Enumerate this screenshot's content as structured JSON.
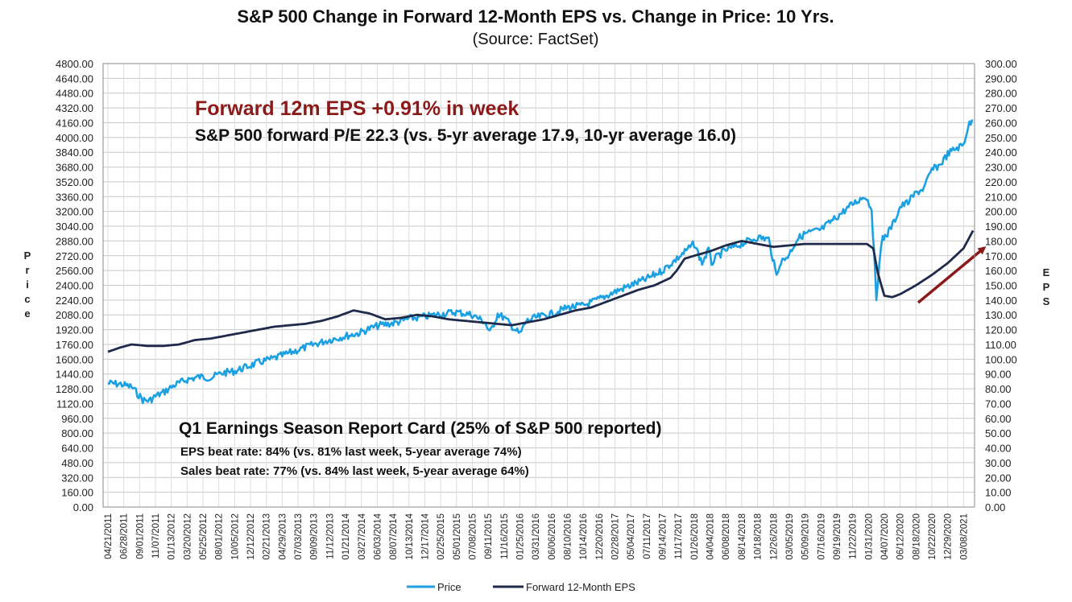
{
  "chart_data": {
    "type": "line",
    "title": "S&P 500 Change in Forward 12-Month EPS vs. Change in Price: 10 Yrs.",
    "subtitle": "(Source: FactSet)",
    "ylabel": "Price",
    "y2label": "EPS",
    "ylim": [
      0,
      4800
    ],
    "y2lim": [
      0,
      300
    ],
    "yticks": [
      "0.00",
      "160.00",
      "320.00",
      "480.00",
      "640.00",
      "800.00",
      "960.00",
      "1120.00",
      "1280.00",
      "1440.00",
      "1600.00",
      "1760.00",
      "1920.00",
      "2080.00",
      "2240.00",
      "2400.00",
      "2560.00",
      "2720.00",
      "2880.00",
      "3040.00",
      "3200.00",
      "3360.00",
      "3520.00",
      "3680.00",
      "3840.00",
      "4000.00",
      "4160.00",
      "4320.00",
      "4480.00",
      "4640.00",
      "4800.00"
    ],
    "y2ticks": [
      "0.00",
      "10.00",
      "20.00",
      "30.00",
      "40.00",
      "50.00",
      "60.00",
      "70.00",
      "80.00",
      "90.00",
      "100.00",
      "110.00",
      "120.00",
      "130.00",
      "140.00",
      "150.00",
      "160.00",
      "170.00",
      "180.00",
      "190.00",
      "200.00",
      "210.00",
      "220.00",
      "230.00",
      "240.00",
      "250.00",
      "260.00",
      "270.00",
      "280.00",
      "290.00",
      "300.00"
    ],
    "xticks": [
      "04/21/2011",
      "06/28/2011",
      "09/01/2011",
      "11/07/2011",
      "01/13/2012",
      "03/20/2012",
      "05/25/2012",
      "08/01/2012",
      "10/05/2012",
      "12/12/2012",
      "02/21/2013",
      "04/29/2013",
      "07/03/2013",
      "09/09/2013",
      "11/12/2013",
      "01/21/2014",
      "03/27/2014",
      "06/03/2014",
      "08/07/2014",
      "10/13/2014",
      "12/17/2014",
      "02/25/2015",
      "05/01/2015",
      "07/08/2015",
      "09/11/2015",
      "11/16/2015",
      "01/25/2016",
      "03/31/2016",
      "06/06/2016",
      "08/10/2016",
      "10/14/2016",
      "12/20/2016",
      "02/28/2017",
      "05/04/2017",
      "07/11/2017",
      "09/14/2017",
      "11/17/2017",
      "01/26/2018",
      "04/04/2018",
      "06/08/2018",
      "08/14/2018",
      "10/18/2018",
      "12/26/2018",
      "03/05/2019",
      "05/09/2019",
      "07/16/2019",
      "09/19/2019",
      "11/22/2019",
      "01/31/2020",
      "04/07/2020",
      "06/12/2020",
      "08/18/2020",
      "10/22/2020",
      "12/29/2020",
      "03/08/2021"
    ],
    "series": [
      {
        "name": "Price",
        "axis": "left",
        "color": "#1ba1e2",
        "x": [
          0,
          0.8,
          1.5,
          2.2,
          2.6,
          3.0,
          3.5,
          4.2,
          5.0,
          5.8,
          6.5,
          7.2,
          8.0,
          8.8,
          9.6,
          10.3,
          11.0,
          12.0,
          13.0,
          14.0,
          15.0,
          15.8,
          16.5,
          17.2,
          18.0,
          18.5,
          19.0,
          20.0,
          21.0,
          22.0,
          23.0,
          23.8,
          24.1,
          24.6,
          25.0,
          25.6,
          26.0,
          26.4,
          27.0,
          28.0,
          29.0,
          30.0,
          31.0,
          32.0,
          33.0,
          34.0,
          35.0,
          36.0,
          37.0,
          37.5,
          37.9,
          38.1,
          38.5,
          39.0,
          40.0,
          41.0,
          41.7,
          42.2,
          42.4,
          42.8,
          43.0,
          43.5,
          44.0,
          45.0,
          46.0,
          47.0,
          47.8,
          48.2,
          48.5,
          48.7,
          48.9,
          49.2,
          49.6,
          50.0,
          50.5,
          51.0,
          51.5,
          52.0,
          52.5,
          53.0,
          53.5,
          54.0,
          54.3,
          54.6
        ],
        "values": [
          1340,
          1330,
          1300,
          1160,
          1150,
          1200,
          1240,
          1320,
          1380,
          1410,
          1400,
          1450,
          1470,
          1520,
          1570,
          1600,
          1640,
          1700,
          1760,
          1810,
          1850,
          1880,
          1930,
          1970,
          1990,
          2010,
          2040,
          2060,
          2090,
          2110,
          2080,
          2000,
          1880,
          2090,
          2050,
          1940,
          1870,
          2010,
          2050,
          2090,
          2160,
          2180,
          2250,
          2330,
          2400,
          2470,
          2560,
          2700,
          2850,
          2640,
          2780,
          2640,
          2720,
          2780,
          2850,
          2920,
          2900,
          2500,
          2640,
          2700,
          2740,
          2900,
          2960,
          3000,
          3140,
          3280,
          3370,
          3230,
          2250,
          2700,
          2900,
          2960,
          3080,
          3250,
          3300,
          3400,
          3450,
          3650,
          3700,
          3820,
          3880,
          3920,
          4130,
          4180
        ]
      },
      {
        "name": "Forward 12-Month EPS",
        "axis": "right",
        "color": "#1f2a4a",
        "x": [
          0,
          0.8,
          1.5,
          2.5,
          3.5,
          4.5,
          5.5,
          6.5,
          7.5,
          8.5,
          9.5,
          10.5,
          11.5,
          12.5,
          13.5,
          14.5,
          15.5,
          16.5,
          17.5,
          18.5,
          19.5,
          20.5,
          21.5,
          22.5,
          23.5,
          24.5,
          25.5,
          26.5,
          27.5,
          28.5,
          29.5,
          30.5,
          31.5,
          32.5,
          33.5,
          34.5,
          35.5,
          35.9,
          36.4,
          37.0,
          38.0,
          39.0,
          40.0,
          41.0,
          42.0,
          43.0,
          44.0,
          45.0,
          46.0,
          47.0,
          47.9,
          48.3,
          48.6,
          49.0,
          49.5,
          50.0,
          50.5,
          51.0,
          52.0,
          53.0,
          54.0,
          54.6
        ],
        "values": [
          105,
          108,
          110,
          109,
          109,
          110,
          113,
          114,
          116,
          118,
          120,
          122,
          123,
          124,
          126,
          129,
          133,
          131,
          127,
          128,
          130,
          129,
          127,
          126,
          125,
          124,
          123,
          125,
          127,
          130,
          133,
          135,
          139,
          143,
          147,
          150,
          155,
          160,
          168,
          170,
          173,
          177,
          180,
          178,
          176,
          177,
          178,
          178,
          178,
          178,
          178,
          175,
          158,
          143,
          142,
          144,
          147,
          150,
          157,
          165,
          175,
          187
        ]
      }
    ],
    "annotations": {
      "eps_week": "Forward 12m EPS +0.91% in week",
      "pe_line": "S&P 500 forward P/E 22.3 (vs. 5-yr average 17.9, 10-yr average 16.0)",
      "report_title": "Q1 Earnings Season Report Card (25% of S&P 500 reported)",
      "eps_beat": "EPS beat rate: 84% (vs. 81% last week, 5-year average 74%)",
      "sales_beat": "Sales beat rate: 77% (vs. 84% last week, 5-year average 64%)"
    },
    "legend": {
      "placement": "bottom-center",
      "items": [
        "Price",
        "Forward 12-Month EPS"
      ]
    },
    "grid": true,
    "colors": {
      "price": "#1ba1e2",
      "eps": "#1f2a4a",
      "arrow": "#8b1a1a",
      "highlight": "#8b1a1a"
    }
  }
}
